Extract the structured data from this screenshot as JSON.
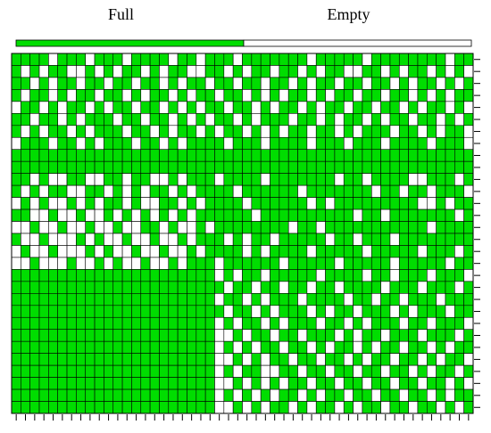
{
  "chart_data": {
    "type": "heatmap",
    "legend": [
      {
        "name": "Full",
        "color": "#00dd00"
      },
      {
        "name": "Empty",
        "color": "#ffffff"
      }
    ],
    "values": [
      [
        1,
        1,
        1,
        1,
        0,
        1,
        1,
        1,
        0,
        1,
        1,
        1,
        0,
        1,
        1,
        1,
        1,
        0,
        1,
        1,
        0,
        1,
        1,
        1,
        0,
        1,
        1,
        1,
        1,
        1,
        1,
        1,
        0,
        1,
        1,
        1,
        1,
        1,
        0,
        1,
        1,
        1,
        1,
        1,
        1,
        1,
        1,
        0,
        1,
        1
      ],
      [
        1,
        0,
        1,
        0,
        1,
        1,
        0,
        0,
        1,
        0,
        1,
        0,
        1,
        1,
        0,
        1,
        0,
        1,
        1,
        0,
        0,
        1,
        1,
        0,
        1,
        0,
        1,
        1,
        0,
        1,
        1,
        0,
        1,
        0,
        1,
        1,
        0,
        0,
        1,
        1,
        0,
        1,
        0,
        1,
        1,
        0,
        1,
        0,
        1,
        0
      ],
      [
        1,
        1,
        0,
        1,
        0,
        1,
        1,
        0,
        1,
        1,
        0,
        1,
        1,
        0,
        1,
        1,
        0,
        1,
        0,
        1,
        1,
        0,
        1,
        1,
        0,
        1,
        1,
        0,
        1,
        1,
        0,
        1,
        0,
        1,
        1,
        0,
        1,
        1,
        0,
        1,
        1,
        0,
        1,
        0,
        1,
        1,
        0,
        1,
        0,
        1
      ],
      [
        1,
        0,
        1,
        1,
        0,
        1,
        0,
        1,
        1,
        0,
        1,
        1,
        0,
        1,
        0,
        1,
        1,
        0,
        1,
        0,
        1,
        1,
        0,
        1,
        1,
        0,
        1,
        0,
        1,
        0,
        1,
        1,
        0,
        1,
        0,
        1,
        1,
        0,
        1,
        1,
        0,
        1,
        1,
        0,
        1,
        0,
        1,
        0,
        1,
        1
      ],
      [
        0,
        1,
        1,
        0,
        1,
        0,
        1,
        1,
        0,
        1,
        0,
        1,
        1,
        0,
        1,
        1,
        0,
        1,
        0,
        1,
        0,
        1,
        1,
        0,
        1,
        1,
        0,
        1,
        0,
        1,
        1,
        0,
        1,
        0,
        1,
        1,
        0,
        1,
        1,
        0,
        1,
        1,
        0,
        1,
        0,
        1,
        1,
        0,
        1,
        0
      ],
      [
        1,
        1,
        0,
        1,
        1,
        0,
        1,
        0,
        1,
        1,
        1,
        0,
        1,
        1,
        0,
        1,
        1,
        0,
        1,
        0,
        1,
        0,
        1,
        1,
        0,
        1,
        0,
        1,
        1,
        1,
        0,
        1,
        1,
        0,
        1,
        0,
        1,
        1,
        0,
        1,
        0,
        1,
        1,
        0,
        1,
        1,
        0,
        1,
        0,
        1
      ],
      [
        1,
        0,
        1,
        0,
        1,
        1,
        0,
        1,
        0,
        1,
        1,
        1,
        0,
        1,
        1,
        0,
        1,
        0,
        1,
        1,
        0,
        1,
        0,
        1,
        1,
        0,
        1,
        0,
        1,
        0,
        1,
        1,
        0,
        1,
        1,
        0,
        1,
        0,
        1,
        1,
        1,
        0,
        1,
        1,
        0,
        1,
        0,
        1,
        1,
        0
      ],
      [
        0,
        1,
        1,
        1,
        0,
        1,
        1,
        0,
        1,
        0,
        1,
        1,
        1,
        0,
        1,
        1,
        0,
        1,
        0,
        1,
        1,
        1,
        1,
        0,
        1,
        1,
        1,
        0,
        1,
        1,
        1,
        1,
        0,
        1,
        1,
        1,
        0,
        1,
        1,
        1,
        0,
        1,
        1,
        1,
        1,
        0,
        1,
        1,
        1,
        0
      ],
      [
        1,
        1,
        1,
        1,
        1,
        1,
        1,
        1,
        1,
        1,
        1,
        1,
        1,
        1,
        1,
        1,
        1,
        1,
        1,
        1,
        1,
        1,
        1,
        1,
        1,
        1,
        1,
        1,
        1,
        1,
        1,
        1,
        1,
        1,
        1,
        1,
        1,
        1,
        1,
        1,
        1,
        1,
        1,
        1,
        1,
        1,
        1,
        1,
        1,
        1
      ],
      [
        1,
        1,
        1,
        1,
        1,
        1,
        1,
        1,
        1,
        1,
        1,
        1,
        1,
        1,
        1,
        1,
        1,
        1,
        1,
        1,
        1,
        1,
        1,
        1,
        1,
        1,
        1,
        1,
        1,
        1,
        1,
        1,
        1,
        1,
        1,
        1,
        1,
        1,
        1,
        1,
        1,
        1,
        1,
        1,
        1,
        1,
        1,
        1,
        1,
        1
      ],
      [
        1,
        1,
        0,
        1,
        0,
        0,
        1,
        1,
        0,
        0,
        1,
        1,
        0,
        1,
        1,
        0,
        0,
        1,
        0,
        1,
        1,
        1,
        0,
        1,
        1,
        1,
        1,
        0,
        1,
        1,
        1,
        1,
        1,
        1,
        1,
        0,
        1,
        1,
        0,
        1,
        1,
        1,
        1,
        0,
        0,
        1,
        1,
        1,
        0,
        1
      ],
      [
        1,
        0,
        1,
        0,
        1,
        1,
        0,
        0,
        1,
        1,
        0,
        1,
        0,
        1,
        0,
        1,
        1,
        0,
        1,
        0,
        1,
        1,
        1,
        1,
        0,
        1,
        1,
        1,
        1,
        1,
        1,
        0,
        1,
        1,
        1,
        1,
        1,
        1,
        1,
        0,
        1,
        1,
        0,
        1,
        1,
        0,
        1,
        1,
        1,
        0
      ],
      [
        0,
        1,
        0,
        1,
        0,
        0,
        1,
        0,
        1,
        0,
        1,
        1,
        0,
        1,
        0,
        0,
        1,
        1,
        0,
        1,
        0,
        1,
        1,
        1,
        1,
        0,
        1,
        1,
        1,
        1,
        1,
        1,
        0,
        1,
        0,
        1,
        1,
        1,
        1,
        1,
        1,
        1,
        1,
        1,
        0,
        0,
        1,
        0,
        1,
        1
      ],
      [
        1,
        1,
        0,
        0,
        1,
        0,
        0,
        1,
        0,
        0,
        1,
        0,
        1,
        0,
        1,
        0,
        1,
        0,
        1,
        0,
        1,
        1,
        1,
        1,
        1,
        1,
        0,
        1,
        1,
        1,
        1,
        1,
        1,
        1,
        1,
        1,
        1,
        0,
        1,
        1,
        0,
        1,
        1,
        1,
        1,
        1,
        1,
        1,
        0,
        1
      ],
      [
        0,
        0,
        1,
        0,
        0,
        1,
        0,
        0,
        1,
        0,
        0,
        1,
        0,
        0,
        1,
        1,
        0,
        1,
        0,
        0,
        1,
        0,
        1,
        1,
        1,
        1,
        1,
        1,
        1,
        1,
        0,
        1,
        1,
        0,
        1,
        1,
        1,
        1,
        1,
        1,
        1,
        1,
        1,
        1,
        1,
        0,
        1,
        1,
        1,
        1
      ],
      [
        1,
        0,
        0,
        1,
        0,
        0,
        0,
        1,
        0,
        1,
        0,
        0,
        1,
        0,
        0,
        1,
        0,
        0,
        1,
        0,
        1,
        1,
        1,
        0,
        1,
        0,
        1,
        1,
        0,
        1,
        1,
        1,
        1,
        1,
        0,
        1,
        1,
        0,
        1,
        1,
        1,
        0,
        1,
        1,
        1,
        1,
        1,
        1,
        1,
        1
      ],
      [
        0,
        1,
        0,
        0,
        1,
        0,
        0,
        0,
        1,
        0,
        1,
        0,
        0,
        1,
        0,
        0,
        1,
        0,
        0,
        1,
        0,
        1,
        1,
        1,
        1,
        0,
        1,
        0,
        1,
        1,
        1,
        1,
        0,
        1,
        1,
        1,
        1,
        1,
        0,
        1,
        1,
        1,
        1,
        1,
        0,
        1,
        1,
        1,
        0,
        1
      ],
      [
        0,
        0,
        1,
        0,
        0,
        0,
        1,
        0,
        0,
        1,
        0,
        1,
        0,
        0,
        1,
        0,
        0,
        1,
        0,
        1,
        1,
        1,
        0,
        1,
        1,
        1,
        1,
        1,
        1,
        0,
        1,
        1,
        1,
        1,
        1,
        0,
        1,
        1,
        1,
        1,
        1,
        0,
        1,
        1,
        1,
        1,
        1,
        0,
        1,
        1
      ],
      [
        1,
        1,
        1,
        1,
        1,
        1,
        1,
        1,
        1,
        1,
        1,
        1,
        1,
        1,
        1,
        1,
        1,
        1,
        1,
        1,
        1,
        1,
        0,
        1,
        0,
        1,
        1,
        0,
        1,
        1,
        1,
        1,
        1,
        0,
        1,
        1,
        1,
        1,
        0,
        1,
        1,
        0,
        1,
        1,
        1,
        0,
        1,
        1,
        1,
        0
      ],
      [
        1,
        1,
        1,
        1,
        1,
        1,
        1,
        1,
        1,
        1,
        1,
        1,
        1,
        1,
        1,
        1,
        1,
        1,
        1,
        1,
        1,
        1,
        1,
        0,
        1,
        1,
        0,
        1,
        1,
        0,
        1,
        1,
        0,
        1,
        1,
        0,
        1,
        1,
        1,
        1,
        0,
        1,
        1,
        1,
        0,
        1,
        1,
        1,
        0,
        1
      ],
      [
        1,
        1,
        1,
        1,
        1,
        1,
        1,
        1,
        1,
        1,
        1,
        1,
        1,
        1,
        1,
        1,
        1,
        1,
        1,
        1,
        1,
        1,
        0,
        1,
        1,
        0,
        1,
        0,
        1,
        1,
        1,
        0,
        1,
        1,
        1,
        1,
        0,
        1,
        1,
        0,
        1,
        1,
        0,
        1,
        1,
        1,
        0,
        1,
        1,
        1
      ],
      [
        1,
        1,
        1,
        1,
        1,
        1,
        1,
        1,
        1,
        1,
        1,
        1,
        1,
        1,
        1,
        1,
        1,
        1,
        1,
        1,
        1,
        1,
        1,
        0,
        1,
        1,
        0,
        1,
        0,
        1,
        1,
        1,
        0,
        1,
        0,
        1,
        1,
        0,
        1,
        1,
        1,
        0,
        1,
        0,
        1,
        1,
        1,
        0,
        1,
        1
      ],
      [
        1,
        1,
        1,
        1,
        1,
        1,
        1,
        1,
        1,
        1,
        1,
        1,
        1,
        1,
        1,
        1,
        1,
        1,
        1,
        1,
        1,
        1,
        0,
        1,
        0,
        1,
        1,
        0,
        1,
        0,
        1,
        1,
        1,
        0,
        1,
        1,
        0,
        1,
        0,
        1,
        1,
        1,
        0,
        1,
        1,
        0,
        1,
        1,
        1,
        0
      ],
      [
        1,
        1,
        1,
        1,
        1,
        1,
        1,
        1,
        1,
        1,
        1,
        1,
        1,
        1,
        1,
        1,
        1,
        1,
        1,
        1,
        1,
        1,
        0,
        0,
        1,
        0,
        1,
        1,
        0,
        1,
        1,
        0,
        1,
        1,
        1,
        0,
        1,
        0,
        1,
        1,
        0,
        1,
        1,
        1,
        0,
        1,
        1,
        1,
        0,
        1
      ],
      [
        1,
        1,
        1,
        1,
        1,
        1,
        1,
        1,
        1,
        1,
        1,
        1,
        1,
        1,
        1,
        1,
        1,
        1,
        1,
        1,
        1,
        1,
        0,
        1,
        0,
        1,
        0,
        1,
        1,
        0,
        1,
        1,
        0,
        1,
        0,
        1,
        1,
        0,
        1,
        0,
        1,
        1,
        0,
        1,
        1,
        0,
        1,
        0,
        1,
        1
      ],
      [
        1,
        1,
        1,
        1,
        1,
        1,
        1,
        1,
        1,
        1,
        1,
        1,
        1,
        1,
        1,
        1,
        1,
        1,
        1,
        1,
        1,
        1,
        0,
        0,
        1,
        0,
        1,
        0,
        1,
        1,
        0,
        1,
        1,
        0,
        1,
        1,
        0,
        1,
        0,
        1,
        1,
        0,
        1,
        1,
        0,
        1,
        0,
        1,
        1,
        0
      ],
      [
        1,
        1,
        1,
        1,
        1,
        1,
        1,
        1,
        1,
        1,
        1,
        1,
        1,
        1,
        1,
        1,
        1,
        1,
        1,
        1,
        1,
        1,
        0,
        1,
        0,
        1,
        1,
        0,
        0,
        1,
        1,
        0,
        1,
        1,
        0,
        1,
        1,
        0,
        1,
        1,
        0,
        1,
        1,
        0,
        1,
        0,
        1,
        1,
        0,
        1
      ],
      [
        1,
        1,
        1,
        1,
        1,
        1,
        1,
        1,
        1,
        1,
        1,
        1,
        1,
        1,
        1,
        1,
        1,
        1,
        1,
        1,
        1,
        1,
        0,
        0,
        1,
        0,
        1,
        0,
        1,
        0,
        1,
        1,
        0,
        1,
        1,
        0,
        1,
        1,
        0,
        1,
        1,
        0,
        1,
        1,
        0,
        1,
        1,
        0,
        1,
        0
      ],
      [
        1,
        1,
        1,
        1,
        1,
        1,
        1,
        1,
        1,
        1,
        1,
        1,
        1,
        1,
        1,
        1,
        1,
        1,
        1,
        1,
        1,
        1,
        0,
        1,
        0,
        1,
        0,
        1,
        0,
        1,
        1,
        0,
        1,
        0,
        1,
        1,
        0,
        1,
        1,
        0,
        1,
        1,
        0,
        1,
        1,
        0,
        1,
        0,
        1,
        1
      ],
      [
        1,
        1,
        1,
        1,
        1,
        1,
        1,
        1,
        1,
        1,
        1,
        1,
        1,
        1,
        1,
        1,
        1,
        1,
        1,
        1,
        1,
        1,
        0,
        0,
        1,
        0,
        1,
        0,
        1,
        1,
        0,
        1,
        0,
        1,
        1,
        0,
        1,
        0,
        1,
        1,
        0,
        1,
        1,
        0,
        1,
        1,
        0,
        1,
        0,
        1
      ]
    ]
  }
}
